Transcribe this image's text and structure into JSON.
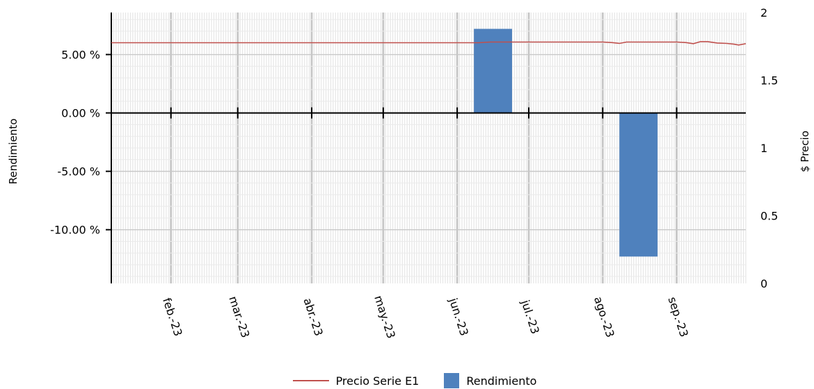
{
  "chart_data": {
    "type": "bar",
    "title": "",
    "xlabel": "",
    "ylabel": "Rendimiento",
    "y2label": "$ Precio",
    "ylim": [
      -14.6,
      8.6
    ],
    "y2lim": [
      0,
      2
    ],
    "yticks": [
      5,
      0,
      -5,
      -10
    ],
    "ytick_labels": [
      "5.00 %",
      "0.00 %",
      "-5.00 %",
      "-10.00 %"
    ],
    "y2ticks": [
      2,
      1.5,
      1,
      0.5,
      0
    ],
    "y2tick_labels": [
      "2",
      "1.5",
      "1",
      "0.5",
      "0"
    ],
    "xlim": [
      "2023-01-07",
      "2023-09-30"
    ],
    "x_ticks": [
      "2023-02-01",
      "2023-03-01",
      "2023-04-01",
      "2023-05-01",
      "2023-06-01",
      "2023-07-01",
      "2023-08-01",
      "2023-09-01"
    ],
    "x_tick_labels": [
      "feb.-23",
      "mar.-23",
      "abr.-23",
      "may.-23",
      "jun.-23",
      "jul.-23",
      "ago.-23",
      "sep.-23"
    ],
    "grid": true,
    "legend_position": "bottom",
    "series": [
      {
        "name": "Rendimiento",
        "type": "bar",
        "color": "#4f81bd",
        "x": [
          "2023-06-08",
          "2023-07-08",
          "2023-08-08",
          "2023-09-08"
        ],
        "x_end": [
          "2023-06-24",
          "2023-07-24",
          "2023-08-24",
          "2023-09-24"
        ],
        "values": [
          7.2,
          0,
          -12.3,
          0
        ]
      },
      {
        "name": "Precio Serie E1",
        "type": "line",
        "axis": "right",
        "color": "#c0504d",
        "x": [
          "2023-01-07",
          "2023-02-01",
          "2023-03-01",
          "2023-04-01",
          "2023-05-01",
          "2023-06-01",
          "2023-06-10",
          "2023-06-15",
          "2023-07-01",
          "2023-07-20",
          "2023-08-01",
          "2023-08-05",
          "2023-08-08",
          "2023-08-11",
          "2023-08-15",
          "2023-09-01",
          "2023-09-05",
          "2023-09-08",
          "2023-09-11",
          "2023-09-14",
          "2023-09-18",
          "2023-09-22",
          "2023-09-25",
          "2023-09-27",
          "2023-09-30"
        ],
        "values": [
          1.777,
          1.777,
          1.777,
          1.777,
          1.777,
          1.777,
          1.777,
          1.782,
          1.782,
          1.782,
          1.782,
          1.778,
          1.772,
          1.782,
          1.782,
          1.782,
          1.778,
          1.77,
          1.785,
          1.785,
          1.775,
          1.772,
          1.766,
          1.76,
          1.77
        ]
      }
    ]
  }
}
